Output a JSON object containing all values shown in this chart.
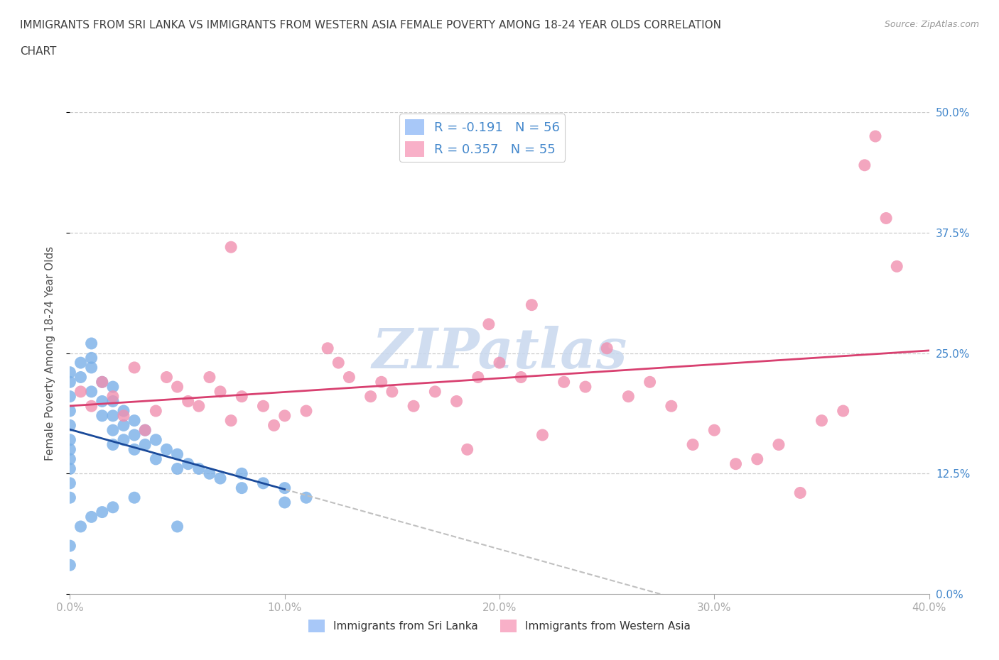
{
  "title_line1": "IMMIGRANTS FROM SRI LANKA VS IMMIGRANTS FROM WESTERN ASIA FEMALE POVERTY AMONG 18-24 YEAR OLDS CORRELATION",
  "title_line2": "CHART",
  "source": "Source: ZipAtlas.com",
  "ylabel": "Female Poverty Among 18-24 Year Olds",
  "legend1_label": "R = -0.191   N = 56",
  "legend2_label": "R = 0.357   N = 55",
  "legend1_color": "#a8c8f8",
  "legend2_color": "#f8b0c8",
  "trend1_color": "#1a4a9a",
  "trend2_color": "#d84070",
  "trend_ext_color": "#c0c0c0",
  "dot_color_sl": "#7ab0e8",
  "dot_color_wa": "#f090b0",
  "watermark_color": "#c8d8ee",
  "axis_color": "#4488cc",
  "title_color": "#404040",
  "ylabel_color": "#505050",
  "sl_x": [
    0.0,
    0.0,
    0.0,
    0.0,
    0.0,
    0.0,
    0.0,
    0.0,
    0.0,
    0.0,
    0.0,
    0.5,
    0.5,
    1.0,
    1.0,
    1.0,
    1.0,
    1.5,
    1.5,
    1.5,
    2.0,
    2.0,
    2.0,
    2.0,
    2.0,
    2.5,
    2.5,
    2.5,
    3.0,
    3.0,
    3.0,
    3.5,
    3.5,
    4.0,
    4.0,
    4.5,
    5.0,
    5.0,
    5.5,
    6.0,
    6.5,
    7.0,
    8.0,
    8.0,
    9.0,
    10.0,
    10.0,
    11.0,
    0.0,
    0.0,
    0.5,
    1.0,
    1.5,
    2.0,
    3.0,
    5.0
  ],
  "sl_y": [
    14.0,
    16.0,
    17.5,
    19.0,
    20.5,
    22.0,
    23.0,
    15.0,
    13.0,
    11.5,
    10.0,
    24.0,
    22.5,
    26.0,
    24.5,
    23.5,
    21.0,
    22.0,
    20.0,
    18.5,
    21.5,
    20.0,
    18.5,
    17.0,
    15.5,
    19.0,
    17.5,
    16.0,
    18.0,
    16.5,
    15.0,
    17.0,
    15.5,
    16.0,
    14.0,
    15.0,
    14.5,
    13.0,
    13.5,
    13.0,
    12.5,
    12.0,
    11.0,
    12.5,
    11.5,
    11.0,
    9.5,
    10.0,
    5.0,
    3.0,
    7.0,
    8.0,
    8.5,
    9.0,
    10.0,
    7.0
  ],
  "wa_x": [
    0.5,
    1.0,
    1.5,
    2.0,
    2.5,
    3.0,
    3.5,
    4.0,
    4.5,
    5.0,
    5.5,
    6.0,
    6.5,
    7.0,
    7.5,
    8.0,
    9.0,
    9.5,
    10.0,
    11.0,
    12.0,
    12.5,
    13.0,
    14.0,
    14.5,
    15.0,
    16.0,
    17.0,
    18.0,
    18.5,
    19.0,
    20.0,
    21.0,
    22.0,
    23.0,
    24.0,
    25.0,
    26.0,
    27.0,
    28.0,
    29.0,
    30.0,
    31.0,
    32.0,
    33.0,
    34.0,
    35.0,
    36.0,
    37.0,
    37.5,
    38.0,
    38.5,
    7.5,
    19.5,
    21.5
  ],
  "wa_y": [
    21.0,
    19.5,
    22.0,
    20.5,
    18.5,
    23.5,
    17.0,
    19.0,
    22.5,
    21.5,
    20.0,
    19.5,
    22.5,
    21.0,
    18.0,
    20.5,
    19.5,
    17.5,
    18.5,
    19.0,
    25.5,
    24.0,
    22.5,
    20.5,
    22.0,
    21.0,
    19.5,
    21.0,
    20.0,
    15.0,
    22.5,
    24.0,
    22.5,
    16.5,
    22.0,
    21.5,
    25.5,
    20.5,
    22.0,
    19.5,
    15.5,
    17.0,
    13.5,
    14.0,
    15.5,
    10.5,
    18.0,
    19.0,
    44.5,
    47.5,
    39.0,
    34.0,
    36.0,
    28.0,
    30.0
  ],
  "xlim": [
    0,
    40
  ],
  "ylim": [
    0,
    50
  ],
  "xticks": [
    0,
    10,
    20,
    30,
    40
  ],
  "yticks_right": [
    0,
    12.5,
    25.0,
    37.5,
    50.0
  ]
}
